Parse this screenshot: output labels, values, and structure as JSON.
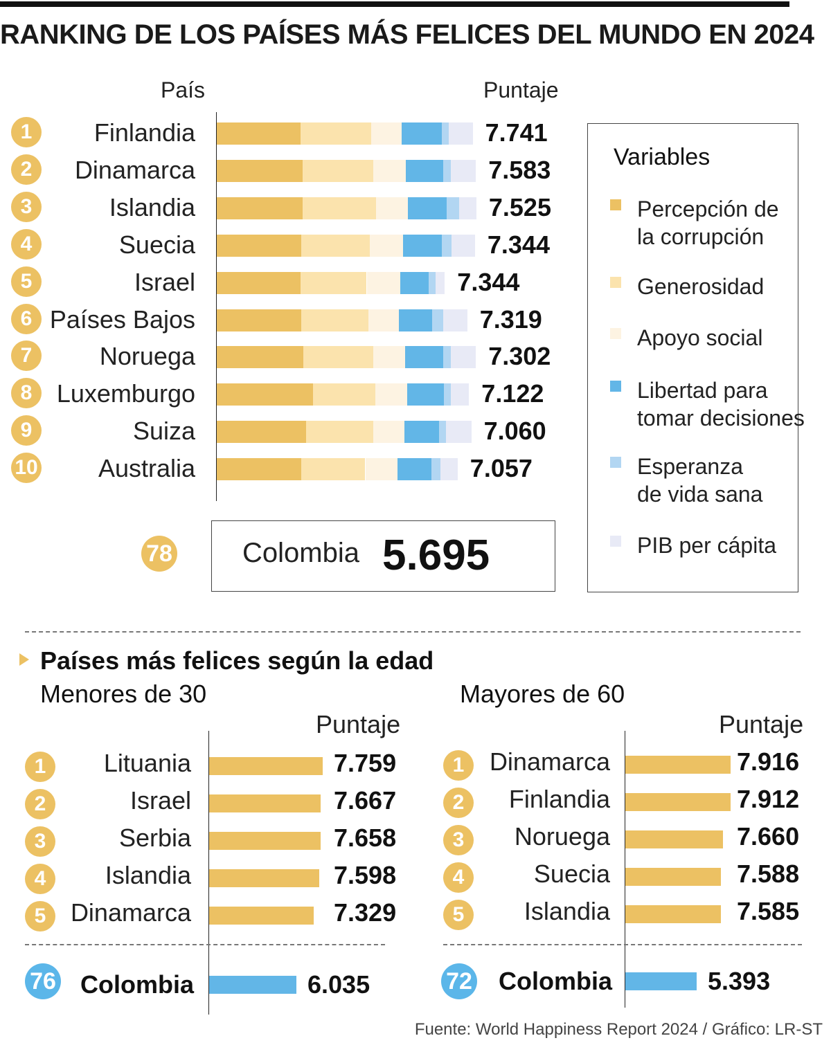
{
  "title": "RANKING DE LOS PAÍSES MÁS FELICES DEL MUNDO EN 2024",
  "headers": {
    "country": "País",
    "score": "Puntaje"
  },
  "colors": {
    "corruption": "#ecc163",
    "generosity": "#fbe3ad",
    "social": "#fdf3e2",
    "freedom": "#62b6e7",
    "health": "#b2d6f2",
    "gdp": "#e8eaf6",
    "badge_gold": "#ecc163",
    "badge_blue": "#5bb6e9"
  },
  "legend": {
    "title": "Variables",
    "items": [
      {
        "key": "corruption",
        "line1": "Percepción de",
        "line2": "la corrupción"
      },
      {
        "key": "generosity",
        "line1": "Generosidad",
        "line2": ""
      },
      {
        "key": "social",
        "line1": "Apoyo social",
        "line2": ""
      },
      {
        "key": "freedom",
        "line1": "Libertad para",
        "line2": "tomar decisiones"
      },
      {
        "key": "health",
        "line1": "Esperanza",
        "line2": "de vida sana"
      },
      {
        "key": "gdp",
        "line1": "PIB per cápita",
        "line2": ""
      }
    ]
  },
  "colombia_main": {
    "rank": "78",
    "name": "Colombia",
    "score": "5.695"
  },
  "age_section": {
    "title": "Países más felices según la edad",
    "under30": {
      "label": "Menores de 30",
      "score_header": "Puntaje",
      "colombia": {
        "rank": "76",
        "name": "Colombia",
        "score": "6.035"
      }
    },
    "over60": {
      "label": "Mayores de 60",
      "score_header": "Puntaje",
      "colombia": {
        "rank": "72",
        "name": "Colombia",
        "score": "5.393"
      }
    }
  },
  "footer": "Fuente: World Happiness Report 2024 / Gráfico: LR-ST",
  "chart_data": [
    {
      "type": "bar",
      "stacked": true,
      "categories": [
        "Finlandia",
        "Dinamarca",
        "Islandia",
        "Suecia",
        "Israel",
        "Países Bajos",
        "Noruega",
        "Luxemburgo",
        "Suiza",
        "Australia"
      ],
      "ranks": [
        "1",
        "2",
        "3",
        "4",
        "5",
        "6",
        "7",
        "8",
        "9",
        "10"
      ],
      "labels": [
        "7.741",
        "7.583",
        "7.525",
        "7.344",
        "7.344",
        "7.319",
        "7.302",
        "7.122",
        "7.060",
        "7.057"
      ],
      "series": [
        {
          "name": "Percepción de la corrupción",
          "values": [
            1.83,
            1.88,
            1.88,
            1.85,
            1.83,
            1.85,
            1.9,
            2.1,
            1.95,
            1.85
          ]
        },
        {
          "name": "Generosidad",
          "values": [
            1.55,
            1.55,
            1.6,
            1.5,
            1.45,
            1.47,
            1.52,
            1.37,
            1.48,
            1.4
          ]
        },
        {
          "name": "Apoyo social",
          "values": [
            0.67,
            0.7,
            0.7,
            0.73,
            0.73,
            0.67,
            0.7,
            0.7,
            0.67,
            0.7
          ]
        },
        {
          "name": "Libertad para tomar decisiones",
          "values": [
            0.88,
            0.82,
            0.85,
            0.85,
            0.63,
            0.72,
            0.83,
            0.8,
            0.77,
            0.75
          ]
        },
        {
          "name": "Esperanza de vida sana",
          "values": [
            0.15,
            0.17,
            0.27,
            0.2,
            0.15,
            0.25,
            0.17,
            0.15,
            0.15,
            0.2
          ]
        },
        {
          "name": "PIB per cápita",
          "values": [
            0.52,
            0.55,
            0.38,
            0.52,
            0.2,
            0.52,
            0.55,
            0.4,
            0.55,
            0.37
          ]
        }
      ]
    },
    {
      "type": "bar",
      "title": "Menores de 30",
      "categories": [
        "Lituania",
        "Israel",
        "Serbia",
        "Islandia",
        "Dinamarca"
      ],
      "ranks": [
        "1",
        "2",
        "3",
        "4",
        "5"
      ],
      "values": [
        7.759,
        7.667,
        7.658,
        7.598,
        7.329
      ],
      "labels": [
        "7.759",
        "7.667",
        "7.658",
        "7.598",
        "7.329"
      ]
    },
    {
      "type": "bar",
      "title": "Mayores de 60",
      "categories": [
        "Dinamarca",
        "Finlandia",
        "Noruega",
        "Suecia",
        "Islandia"
      ],
      "ranks": [
        "1",
        "2",
        "3",
        "4",
        "5"
      ],
      "values": [
        7.916,
        7.912,
        7.66,
        7.588,
        7.585
      ],
      "labels": [
        "7.916",
        "7.912",
        "7.660",
        "7.588",
        "7.585"
      ]
    }
  ]
}
